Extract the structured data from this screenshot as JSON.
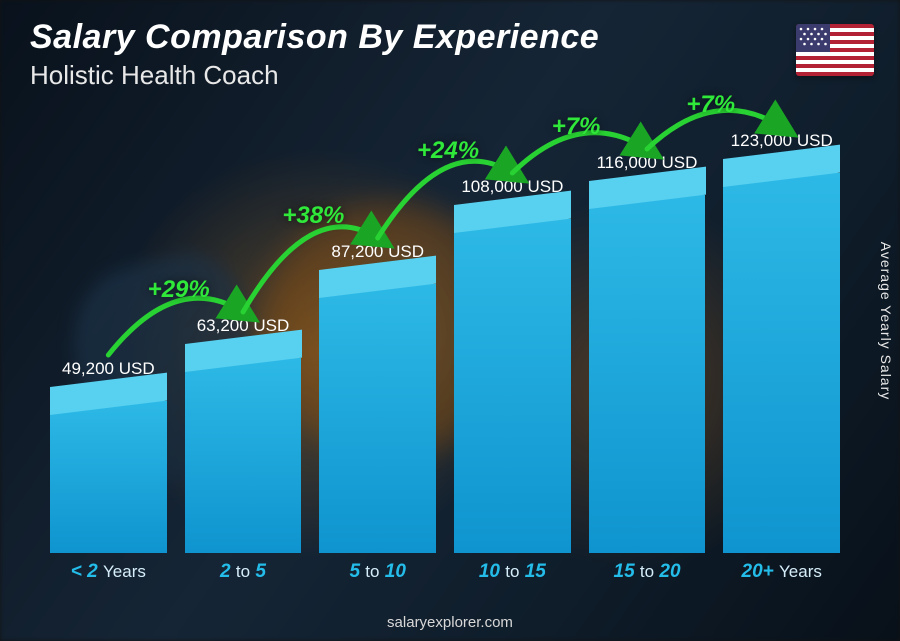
{
  "header": {
    "title": "Salary Comparison By Experience",
    "subtitle": "Holistic Health Coach",
    "flag_country": "United States"
  },
  "axis": {
    "vertical_label": "Average Yearly Salary"
  },
  "chart": {
    "type": "bar",
    "background_color": "#14273a",
    "max_value": 123000,
    "currency_suffix": " USD",
    "bar_colors": {
      "front_top": "#2db9e6",
      "front_bottom": "#0f94cf",
      "top_face": "#58d0f0",
      "side_face": "#0b7fb5"
    },
    "xlabel_color": "#24bdea",
    "xlabel_thin_color": "#d6eefa",
    "value_label_color": "#ffffff",
    "value_label_fontsize": 17,
    "xlabel_fontsize": 19,
    "pct_color": "#2fe83a",
    "arc_color": "#29d233",
    "arrow_color": "#1aa524",
    "bars": [
      {
        "category_strong": "< 2",
        "category_unit": "Years",
        "value": 49200,
        "value_label": "49,200 USD"
      },
      {
        "category_strong": "2",
        "category_mid": "to",
        "category_strong2": "5",
        "value": 63200,
        "value_label": "63,200 USD",
        "pct_increase": "+29%"
      },
      {
        "category_strong": "5",
        "category_mid": "to",
        "category_strong2": "10",
        "value": 87200,
        "value_label": "87,200 USD",
        "pct_increase": "+38%"
      },
      {
        "category_strong": "10",
        "category_mid": "to",
        "category_strong2": "15",
        "value": 108000,
        "value_label": "108,000 USD",
        "pct_increase": "+24%"
      },
      {
        "category_strong": "15",
        "category_mid": "to",
        "category_strong2": "20",
        "value": 116000,
        "value_label": "116,000 USD",
        "pct_increase": "+7%"
      },
      {
        "category_strong": "20+",
        "category_unit": "Years",
        "value": 123000,
        "value_label": "123,000 USD",
        "pct_increase": "+7%"
      }
    ]
  },
  "footer": {
    "site": "salaryexplorer.com"
  }
}
